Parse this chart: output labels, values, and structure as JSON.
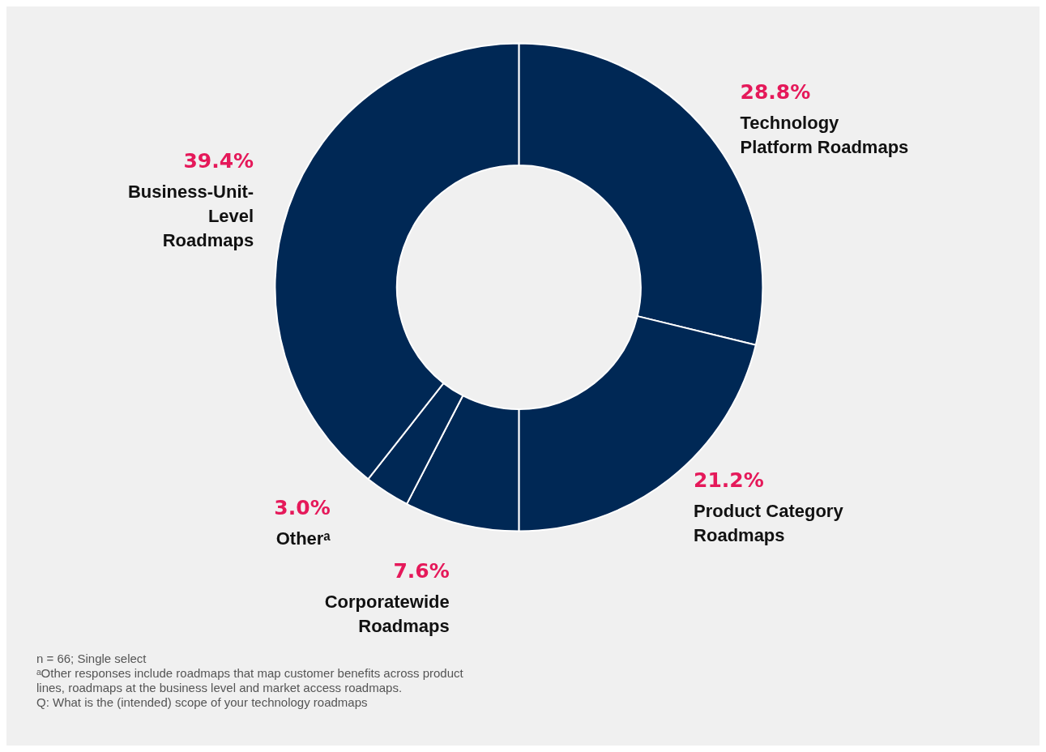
{
  "chart_data": {
    "type": "donut",
    "categories": [
      "Technology Platform Roadmaps",
      "Product Category Roadmaps",
      "Corporatewide Roadmaps",
      "Otherᵃ",
      "Business-Unit-Level Roadmaps"
    ],
    "values": [
      28.8,
      21.2,
      7.6,
      3.0,
      39.4
    ],
    "value_labels": [
      "28.8%",
      "21.2%",
      "7.6%",
      "3.0%",
      "39.4%"
    ],
    "colors": [
      "#002855",
      "#002855",
      "#002855",
      "#002855",
      "#002855"
    ],
    "annotations": [
      "n = 66; Single select",
      "ᵃOther responses include roadmaps that map customer benefits across product lines, roadmaps at the business level and market access roadmaps.",
      "Q: What is the (intended) scope of your technology roadmaps"
    ]
  }
}
